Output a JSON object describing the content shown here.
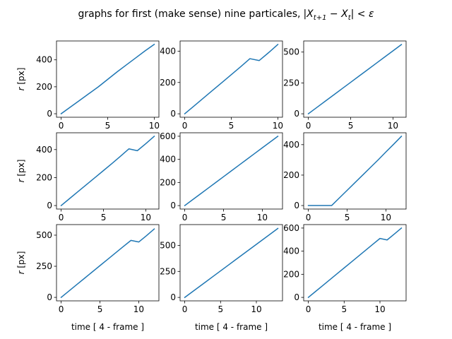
{
  "title": "graphs for first (make sense) nine particales,",
  "title_math": "|X",
  "title_math_sub1": "t+1",
  "title_math_mid": " − X",
  "title_math_sub2": "t",
  "title_math_end": "| < ε",
  "line_color": "#1f77b4",
  "chart_data": [
    {
      "type": "line",
      "xlabel": "",
      "ylabel": "r [px]",
      "xlim": [
        -0.5,
        10.5
      ],
      "ylim": [
        -26,
        540
      ],
      "xticks": [
        0,
        5,
        10
      ],
      "yticks": [
        0,
        200,
        400
      ],
      "x": [
        0,
        1,
        2,
        3,
        4,
        5,
        6,
        7,
        8,
        9,
        10
      ],
      "y": [
        0,
        50,
        100,
        150,
        200,
        255,
        310,
        362,
        414,
        466,
        515
      ]
    },
    {
      "type": "line",
      "xlabel": "",
      "ylabel": "",
      "xlim": [
        -0.5,
        10.5
      ],
      "ylim": [
        -22,
        465
      ],
      "xticks": [
        0,
        5,
        10
      ],
      "yticks": [
        0,
        200,
        400
      ],
      "x": [
        0,
        1,
        2,
        3,
        4,
        5,
        6,
        7,
        8,
        9,
        10
      ],
      "y": [
        0,
        50,
        100,
        150,
        200,
        250,
        300,
        352,
        340,
        390,
        443
      ]
    },
    {
      "type": "line",
      "xlabel": "",
      "ylabel": "",
      "xlim": [
        -0.55,
        11.55
      ],
      "ylim": [
        -28,
        590
      ],
      "xticks": [
        0,
        5,
        10
      ],
      "yticks": [
        0,
        250,
        500
      ],
      "x": [
        0,
        1,
        2,
        3,
        4,
        5,
        6,
        7,
        8,
        9,
        10,
        11
      ],
      "y": [
        0,
        51,
        102,
        153,
        204,
        255,
        306,
        357,
        408,
        459,
        510,
        561
      ]
    },
    {
      "type": "line",
      "xlabel": "",
      "ylabel": "r [px]",
      "xlim": [
        -0.55,
        11.55
      ],
      "ylim": [
        -25,
        520
      ],
      "xticks": [
        0,
        5,
        10
      ],
      "yticks": [
        0,
        200,
        400
      ],
      "x": [
        0,
        1,
        2,
        3,
        4,
        5,
        6,
        7,
        8,
        9,
        10,
        11
      ],
      "y": [
        0,
        50,
        100,
        150,
        200,
        250,
        300,
        352,
        405,
        392,
        442,
        495
      ]
    },
    {
      "type": "line",
      "xlabel": "",
      "ylabel": "",
      "xlim": [
        -0.6,
        12.6
      ],
      "ylim": [
        -30,
        630
      ],
      "xticks": [
        0,
        5,
        10
      ],
      "yticks": [
        0,
        200,
        400,
        600
      ],
      "x": [
        0,
        1,
        2,
        3,
        4,
        5,
        6,
        7,
        8,
        9,
        10,
        11,
        12
      ],
      "y": [
        0,
        50,
        100,
        150,
        200,
        250,
        300,
        350,
        400,
        450,
        500,
        550,
        600
      ]
    },
    {
      "type": "line",
      "xlabel": "",
      "ylabel": "",
      "xlim": [
        -0.6,
        12.6
      ],
      "ylim": [
        -23,
        478
      ],
      "xticks": [
        0,
        5,
        10
      ],
      "yticks": [
        0,
        200,
        400
      ],
      "x": [
        0,
        1,
        2,
        3,
        4,
        5,
        6,
        7,
        8,
        9,
        10,
        11,
        12
      ],
      "y": [
        0,
        0,
        0,
        0,
        50,
        100,
        150,
        200,
        250,
        300,
        352,
        403,
        455
      ]
    },
    {
      "type": "line",
      "xlabel": "time [ 4 - frame ]",
      "ylabel": "r [px]",
      "xlim": [
        -0.6,
        12.6
      ],
      "ylim": [
        -28,
        585
      ],
      "xticks": [
        0,
        5,
        10
      ],
      "yticks": [
        0,
        250,
        500
      ],
      "x": [
        0,
        1,
        2,
        3,
        4,
        5,
        6,
        7,
        8,
        9,
        10,
        11,
        12
      ],
      "y": [
        0,
        51,
        102,
        153,
        204,
        255,
        306,
        357,
        408,
        458,
        445,
        496,
        550
      ]
    },
    {
      "type": "line",
      "xlabel": "time [ 4 - frame ]",
      "ylabel": "",
      "xlim": [
        -0.65,
        13.65
      ],
      "ylim": [
        -33,
        700
      ],
      "xticks": [
        0,
        5,
        10
      ],
      "yticks": [
        0,
        250,
        500
      ],
      "x": [
        0,
        1,
        2,
        3,
        4,
        5,
        6,
        7,
        8,
        9,
        10,
        11,
        12,
        13
      ],
      "y": [
        0,
        51,
        102,
        153,
        204,
        255,
        306,
        357,
        408,
        459,
        510,
        561,
        612,
        663
      ]
    },
    {
      "type": "line",
      "xlabel": "time [ 4 - frame ]",
      "ylabel": "",
      "xlim": [
        -0.65,
        13.65
      ],
      "ylim": [
        -30,
        630
      ],
      "xticks": [
        0,
        5,
        10
      ],
      "yticks": [
        0,
        200,
        400,
        600
      ],
      "x": [
        0,
        1,
        2,
        3,
        4,
        5,
        6,
        7,
        8,
        9,
        10,
        11,
        12,
        13
      ],
      "y": [
        0,
        51,
        102,
        153,
        204,
        255,
        306,
        357,
        408,
        459,
        510,
        497,
        548,
        600
      ]
    }
  ]
}
